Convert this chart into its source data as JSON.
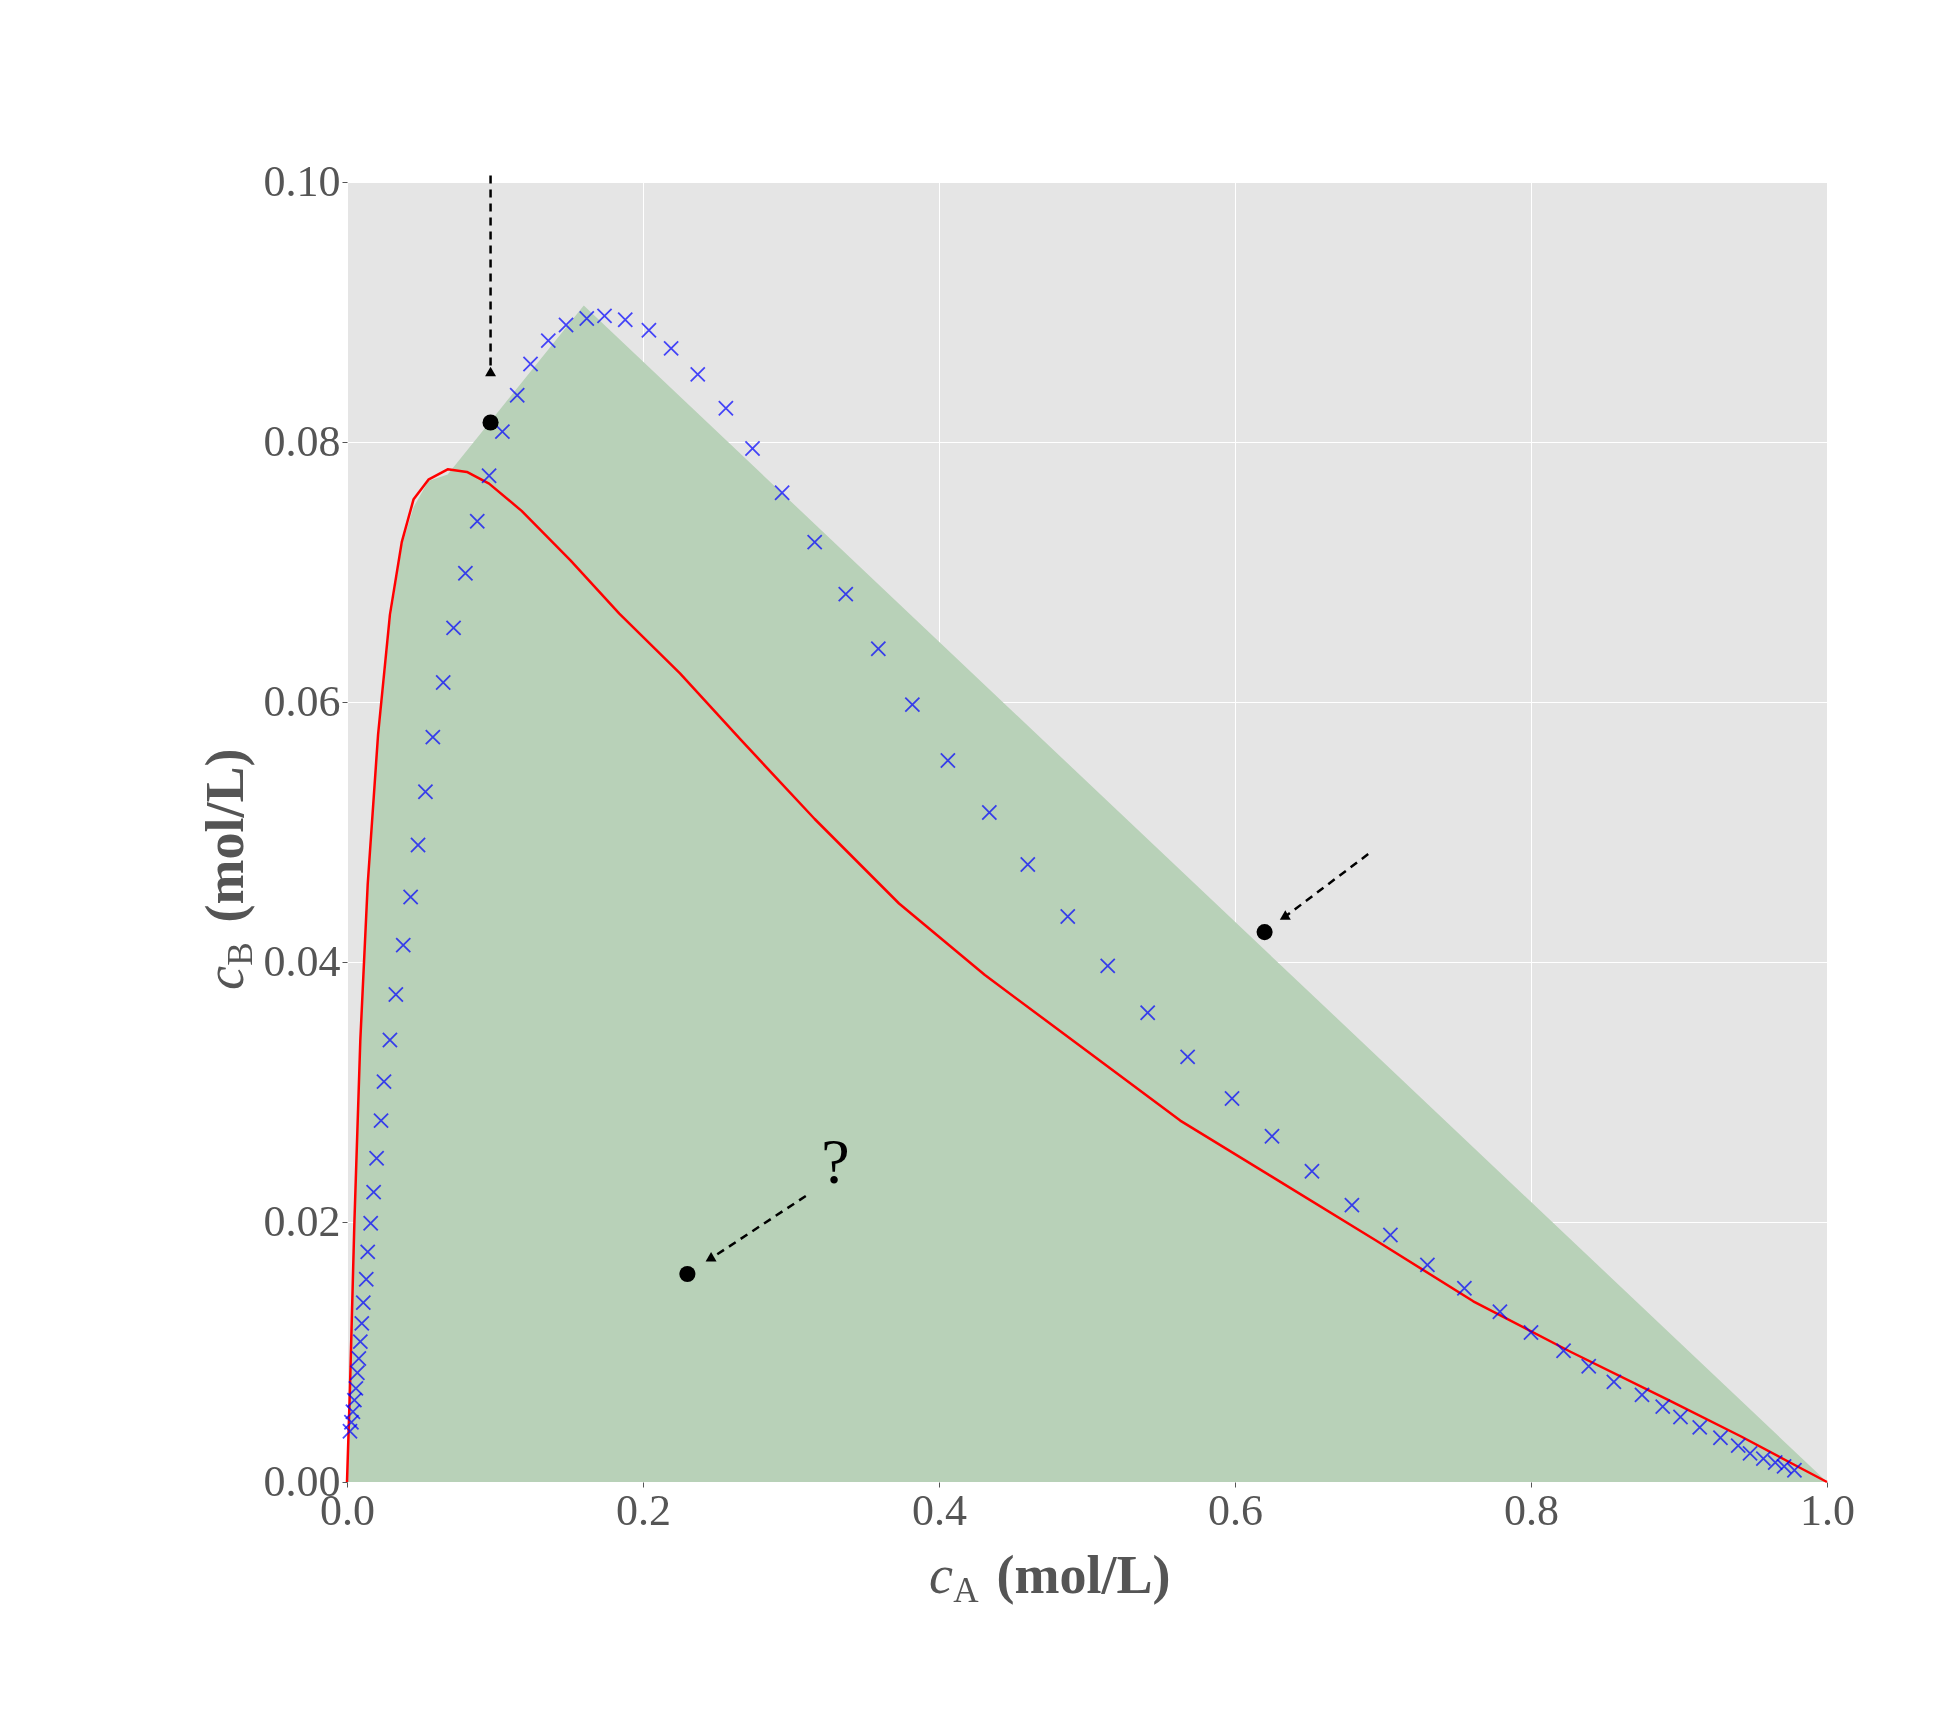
{
  "chart_data": {
    "type": "line",
    "xlabel": "c$_{A}$ (mol/L)",
    "ylabel": "c$_{B}$ (mol/L)",
    "xlim": [
      0,
      1
    ],
    "ylim": [
      0,
      0.1
    ],
    "xticks": [
      {
        "value": 0,
        "label": "0.0"
      },
      {
        "value": 0.2,
        "label": "0.2"
      },
      {
        "value": 0.4,
        "label": "0.4"
      },
      {
        "value": 0.6,
        "label": "0.6"
      },
      {
        "value": 0.8,
        "label": "0.8"
      },
      {
        "value": 1,
        "label": "1.0"
      }
    ],
    "yticks": [
      {
        "value": 0,
        "label": "0.00"
      },
      {
        "value": 0.02,
        "label": "0.02"
      },
      {
        "value": 0.04,
        "label": "0.04"
      },
      {
        "value": 0.06,
        "label": "0.06"
      },
      {
        "value": 0.08,
        "label": "0.08"
      },
      {
        "value": 0.1,
        "label": "0.10"
      }
    ],
    "grid": true,
    "annotations": [
      "?"
    ],
    "series": [
      {
        "type": "area",
        "color": "#b8d1b8",
        "x": [
          0,
          0.002,
          0.005,
          0.009,
          0.014,
          0.021,
          0.029,
          0.037,
          0.045,
          0.055,
          0.068,
          0.16,
          1.0
        ],
        "values": [
          0,
          0.007,
          0.02,
          0.034,
          0.046,
          0.057,
          0.066,
          0.072,
          0.075,
          0.077,
          0.0775,
          0.0905,
          0
        ]
      },
      {
        "color": "#ff0000",
        "x": [
          0,
          0.002,
          0.005,
          0.009,
          0.014,
          0.021,
          0.029,
          0.037,
          0.045,
          0.055,
          0.068,
          0.081,
          0.096,
          0.118,
          0.151,
          0.184,
          0.225,
          0.266,
          0.316,
          0.373,
          0.431,
          0.497,
          0.563,
          0.629,
          0.695,
          0.761,
          0.827,
          0.893,
          0.942,
          0.975,
          1.0
        ],
        "values": [
          0,
          0.0072,
          0.02,
          0.034,
          0.046,
          0.0575,
          0.0667,
          0.0723,
          0.0756,
          0.0771,
          0.0779,
          0.0777,
          0.0768,
          0.0747,
          0.0709,
          0.0668,
          0.0622,
          0.0571,
          0.051,
          0.0445,
          0.039,
          0.0334,
          0.0278,
          0.0232,
          0.0186,
          0.0139,
          0.01,
          0.0063,
          0.0035,
          0.0015,
          0
        ]
      },
      {
        "type": "scatter",
        "color": "#0000ff",
        "marker": "cross",
        "x": [
          0.978,
          0.971,
          0.965,
          0.957,
          0.948,
          0.94,
          0.928,
          0.914,
          0.901,
          0.889,
          0.875,
          0.856,
          0.839,
          0.822,
          0.8,
          0.779,
          0.755,
          0.73,
          0.705,
          0.679,
          0.652,
          0.625,
          0.598,
          0.568,
          0.541,
          0.514,
          0.487,
          0.46,
          0.434,
          0.406,
          0.382,
          0.359,
          0.337,
          0.316,
          0.294,
          0.274,
          0.256,
          0.237,
          0.219,
          0.204,
          0.188,
          0.174,
          0.162,
          0.148,
          0.136,
          0.124,
          0.115,
          0.105,
          0.096,
          0.088,
          0.08,
          0.072,
          0.065,
          0.058,
          0.053,
          0.048,
          0.043,
          0.038,
          0.033,
          0.029,
          0.025,
          0.023,
          0.02,
          0.018,
          0.016,
          0.014,
          0.013,
          0.011,
          0.01,
          0.009,
          0.008,
          0.007,
          0.006,
          0.005,
          0.004,
          0.003,
          0.002
        ],
        "values": [
          0.0009,
          0.0012,
          0.0015,
          0.0018,
          0.0022,
          0.0028,
          0.0034,
          0.0042,
          0.005,
          0.0058,
          0.0067,
          0.0077,
          0.0089,
          0.0101,
          0.0115,
          0.0131,
          0.0149,
          0.0167,
          0.019,
          0.0213,
          0.0239,
          0.0266,
          0.0295,
          0.0327,
          0.0361,
          0.0397,
          0.0435,
          0.0475,
          0.0515,
          0.0555,
          0.0598,
          0.0641,
          0.0683,
          0.0723,
          0.0761,
          0.0795,
          0.0826,
          0.0852,
          0.0872,
          0.0886,
          0.0894,
          0.0897,
          0.0895,
          0.089,
          0.0878,
          0.086,
          0.0836,
          0.0808,
          0.0774,
          0.0739,
          0.0699,
          0.0657,
          0.0615,
          0.0573,
          0.0531,
          0.049,
          0.045,
          0.0413,
          0.0375,
          0.034,
          0.0308,
          0.0278,
          0.0249,
          0.0223,
          0.0199,
          0.0177,
          0.0156,
          0.0138,
          0.0122,
          0.0108,
          0.0095,
          0.0084,
          0.0072,
          0.0063,
          0.0054,
          0.0046,
          0.0039
        ]
      },
      {
        "type": "scatter",
        "color": "#000000",
        "marker": "circle",
        "x": [
          0.097,
          0.62,
          0.23
        ],
        "values": [
          0.0815,
          0.0423,
          0.016
        ]
      }
    ]
  }
}
